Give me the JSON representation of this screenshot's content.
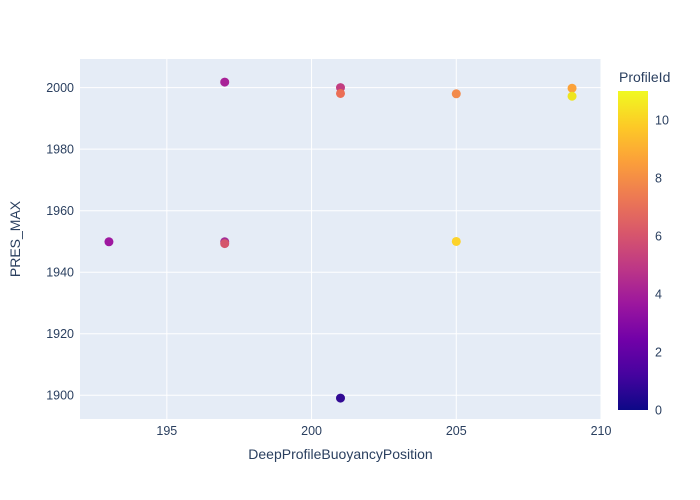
{
  "chart_data": {
    "type": "scatter",
    "title": "",
    "xlabel": "DeepProfileBuoyancyPosition",
    "ylabel": "PRES_MAX",
    "x_range": [
      192,
      210
    ],
    "y_range": [
      1892.3,
      2009.3
    ],
    "x_ticks": [
      195,
      200,
      205,
      210
    ],
    "y_ticks": [
      1900,
      1920,
      1940,
      1960,
      1980,
      2000
    ],
    "grid": true,
    "legend_position": "colorbar-right",
    "points": [
      {
        "x": 193,
        "y": 1949.9,
        "profile_id": 3,
        "color": "#9e189f"
      },
      {
        "x": 197,
        "y": 2001.8,
        "profile_id": 4,
        "color": "#a82297"
      },
      {
        "x": 197,
        "y": 1949.9,
        "profile_id": 4,
        "color": "#a42d95"
      },
      {
        "x": 197,
        "y": 1949.3,
        "profile_id": 6,
        "color": "#d4566c"
      },
      {
        "x": 201,
        "y": 2000.0,
        "profile_id": 5,
        "color": "#c23e81"
      },
      {
        "x": 201,
        "y": 1998.1,
        "profile_id": 7,
        "color": "#eb6e55"
      },
      {
        "x": 201,
        "y": 1899.1,
        "profile_id": 1,
        "color": "#320a94"
      },
      {
        "x": 205,
        "y": 1998.0,
        "profile_id": 8,
        "color": "#f28a4b"
      },
      {
        "x": 205,
        "y": 1950.0,
        "profile_id": 10,
        "color": "#fdd32b"
      },
      {
        "x": 209,
        "y": 1999.8,
        "profile_id": 9,
        "color": "#fba23a"
      },
      {
        "x": 209,
        "y": 1997.2,
        "profile_id": 11,
        "color": "#eee51e"
      }
    ],
    "colorbar": {
      "title": "ProfileId",
      "min": 0,
      "max": 11,
      "ticks": [
        0,
        2,
        4,
        6,
        8,
        10
      ],
      "colorscale_name": "plasma",
      "colorscale": [
        [
          0.0,
          "#0d0887"
        ],
        [
          0.1111,
          "#46039f"
        ],
        [
          0.2222,
          "#7201a8"
        ],
        [
          0.3333,
          "#9c179e"
        ],
        [
          0.4444,
          "#bd3786"
        ],
        [
          0.5556,
          "#d8576b"
        ],
        [
          0.6667,
          "#ed7953"
        ],
        [
          0.7778,
          "#fb9f3a"
        ],
        [
          0.8889,
          "#fdca26"
        ],
        [
          1.0,
          "#f0f921"
        ]
      ]
    },
    "style": {
      "marker_diameter_px": 9,
      "text_color": "#2a3f5f",
      "plot_bg": "#e5ecf6",
      "grid_color": "#ffffff",
      "paper_bg": "#ffffff"
    }
  }
}
